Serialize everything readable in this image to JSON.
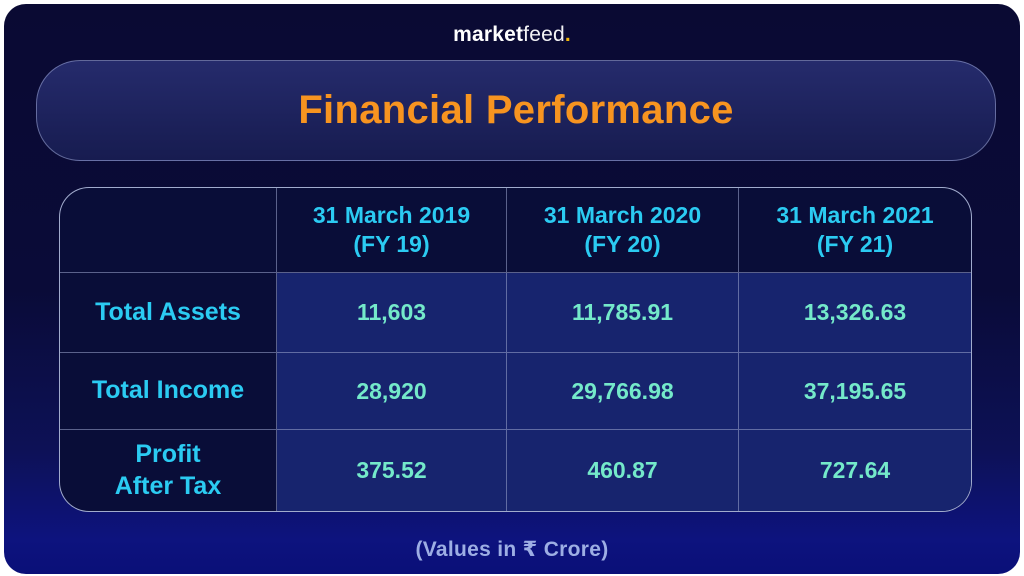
{
  "brand": {
    "bold": "market",
    "light": "feed",
    "dot": "."
  },
  "title": "Financial Performance",
  "table": {
    "headers": [
      {
        "line1": "",
        "line2": ""
      },
      {
        "line1": "31 March 2019",
        "line2": "(FY 19)"
      },
      {
        "line1": "31 March 2020",
        "line2": "(FY 20)"
      },
      {
        "line1": "31 March 2021",
        "line2": "(FY 21)"
      }
    ],
    "rows": [
      {
        "label_line1": "Total Assets",
        "label_line2": "",
        "values": [
          "11,603",
          "11,785.91",
          "13,326.63"
        ]
      },
      {
        "label_line1": "Total Income",
        "label_line2": "",
        "values": [
          "28,920",
          "29,766.98",
          "37,195.65"
        ]
      },
      {
        "label_line1": "Profit",
        "label_line2": "After Tax",
        "values": [
          "375.52",
          "460.87",
          "727.64"
        ]
      }
    ]
  },
  "footnote": "(Values in ₹ Crore)",
  "colors": {
    "accent_orange": "#F79420",
    "accent_cyan": "#2BCBF2",
    "value_mint": "#74E9CA",
    "logo_dot_yellow": "#F2B70A",
    "card_navy": "#0A0A33",
    "cell_blue": "#17246E"
  },
  "chart_data": {
    "type": "table",
    "title": "Financial Performance",
    "categories": [
      "31 March 2019 (FY 19)",
      "31 March 2020 (FY 20)",
      "31 March 2021 (FY 21)"
    ],
    "series": [
      {
        "name": "Total Assets",
        "values": [
          11603,
          11785.91,
          13326.63
        ]
      },
      {
        "name": "Total Income",
        "values": [
          28920,
          29766.98,
          37195.65
        ]
      },
      {
        "name": "Profit After Tax",
        "values": [
          375.52,
          460.87,
          727.64
        ]
      }
    ],
    "note": "(Values in ₹ Crore)",
    "unit": "₹ Crore"
  }
}
